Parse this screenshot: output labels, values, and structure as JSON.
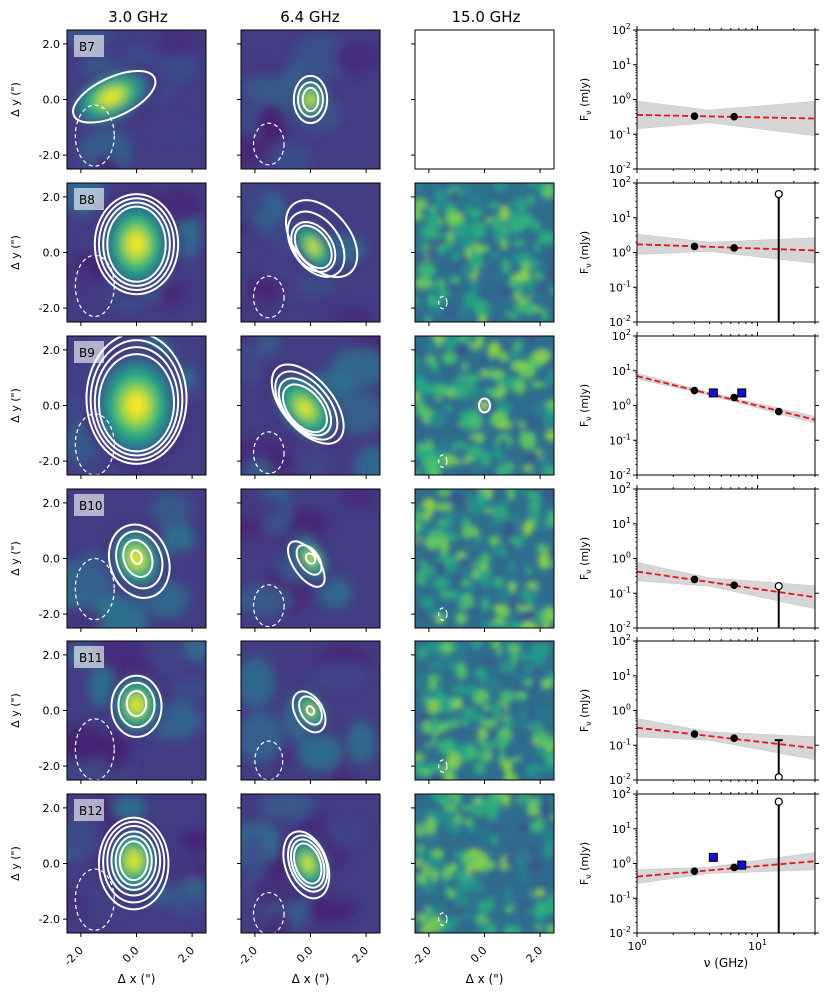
{
  "chart_data": {
    "type": "image-grid-with-sed-scatter",
    "column_titles": [
      "3.0 GHz",
      "6.4 GHz",
      "15.0 GHz"
    ],
    "image_x_label": "Δ x (\")",
    "image_y_label": "Δ y (\")",
    "image_tick_labels": [
      "-2.0",
      "0.0",
      "2.0"
    ],
    "image_ticks": [
      -2.0,
      0.0,
      2.0
    ],
    "image_range": [
      -2.5,
      2.5
    ],
    "sed_x_label": "ν (GHz)",
    "sed_y_label": "F_ν (mJy)",
    "sed_xlim": [
      1,
      30
    ],
    "sed_ylim": [
      0.01,
      100
    ],
    "sed_x_tick_labels": [
      "10^0",
      "10^1"
    ],
    "sed_y_tick_labels": [
      "10^-2",
      "10^-1",
      "10^0",
      "10^1",
      "10^2"
    ],
    "rows": [
      {
        "label": "B7",
        "panels": [
          {
            "freq_ghz": 3.0,
            "source": {
              "x": -0.9,
              "y": 0.1,
              "sx": 0.8,
              "sy": 0.45,
              "angle": 25,
              "peak": 0.95
            },
            "contours": [
              {
                "x": -0.8,
                "y": 0.1,
                "rx": 1.6,
                "ry": 0.7,
                "angle": 25,
                "style": "solid"
              }
            ],
            "beam": {
              "x": -1.5,
              "y": -1.3,
              "rx": 0.7,
              "ry": 1.1
            }
          },
          {
            "freq_ghz": 6.4,
            "source": {
              "x": 0.0,
              "y": 0.0,
              "sx": 0.3,
              "sy": 0.4,
              "angle": 0,
              "peak": 0.9
            },
            "contours": [
              {
                "x": 0.0,
                "y": 0.0,
                "rx": 0.28,
                "ry": 0.42,
                "style": "solid"
              },
              {
                "x": 0.0,
                "y": 0.0,
                "rx": 0.45,
                "ry": 0.62,
                "style": "solid"
              },
              {
                "x": 0.0,
                "y": 0.0,
                "rx": 0.6,
                "ry": 0.85,
                "style": "solid"
              }
            ],
            "beam": {
              "x": -1.5,
              "y": -1.6,
              "rx": 0.55,
              "ry": 0.75
            }
          },
          {
            "freq_ghz": 15.0,
            "empty": true
          }
        ],
        "sed": {
          "points": [
            {
              "nu": 3.0,
              "flux": 0.33
            },
            {
              "nu": 6.4,
              "flux": 0.32
            }
          ],
          "fit": {
            "y_at_1": 0.36,
            "slope": -0.07
          },
          "band_width": 0.3
        }
      },
      {
        "label": "B8",
        "panels": [
          {
            "freq_ghz": 3.0,
            "source": {
              "x": 0.0,
              "y": 0.3,
              "sx": 0.65,
              "sy": 0.85,
              "angle": 0,
              "peak": 0.95
            },
            "contours": [
              {
                "x": 0.0,
                "y": 0.3,
                "rx": 1.05,
                "ry": 1.35,
                "style": "solid"
              },
              {
                "x": 0.0,
                "y": 0.3,
                "rx": 1.2,
                "ry": 1.5,
                "style": "solid"
              },
              {
                "x": 0.0,
                "y": 0.3,
                "rx": 1.35,
                "ry": 1.65,
                "style": "solid"
              },
              {
                "x": 0.0,
                "y": 0.3,
                "rx": 1.5,
                "ry": 1.8,
                "style": "solid"
              }
            ],
            "beam": {
              "x": -1.5,
              "y": -1.2,
              "rx": 0.7,
              "ry": 1.1
            }
          },
          {
            "freq_ghz": 6.4,
            "source": {
              "x": 0.1,
              "y": 0.2,
              "sx": 0.3,
              "sy": 0.55,
              "angle": 35,
              "peak": 0.9
            },
            "contours": [
              {
                "x": 0.1,
                "y": 0.2,
                "rx": 0.55,
                "ry": 0.85,
                "angle": 35,
                "style": "solid"
              },
              {
                "x": 0.1,
                "y": 0.2,
                "rx": 0.68,
                "ry": 0.98,
                "angle": 35,
                "style": "solid"
              },
              {
                "x": 0.2,
                "y": 0.3,
                "rx": 0.85,
                "ry": 1.3,
                "angle": 35,
                "style": "solid"
              },
              {
                "x": 0.4,
                "y": 0.5,
                "rx": 1.0,
                "ry": 1.6,
                "angle": 40,
                "style": "solid"
              }
            ],
            "beam": {
              "x": -1.5,
              "y": -1.6,
              "rx": 0.55,
              "ry": 0.75
            }
          },
          {
            "freq_ghz": 15.0,
            "noise": true,
            "beam": {
              "x": -1.5,
              "y": -1.8,
              "rx": 0.15,
              "ry": 0.22
            }
          }
        ],
        "sed": {
          "points": [
            {
              "nu": 3.0,
              "flux": 1.5
            },
            {
              "nu": 6.4,
              "flux": 1.35
            },
            {
              "nu": 15.0,
              "flux": 48,
              "upper_limit": true
            }
          ],
          "fit": {
            "y_at_1": 1.72,
            "slope": -0.12
          },
          "band_width": 0.22
        }
      },
      {
        "label": "B9",
        "panels": [
          {
            "freq_ghz": 3.0,
            "source": {
              "x": 0.0,
              "y": 0.0,
              "sx": 0.8,
              "sy": 1.0,
              "angle": 0,
              "peak": 0.95
            },
            "contours": [
              {
                "x": 0.0,
                "y": 0.1,
                "rx": 1.35,
                "ry": 1.75,
                "style": "solid"
              },
              {
                "x": 0.0,
                "y": 0.15,
                "rx": 1.5,
                "ry": 1.95,
                "style": "solid"
              },
              {
                "x": 0.0,
                "y": 0.2,
                "rx": 1.65,
                "ry": 2.15,
                "style": "solid"
              },
              {
                "x": 0.0,
                "y": 0.25,
                "rx": 1.8,
                "ry": 2.35,
                "style": "solid"
              }
            ],
            "beam": {
              "x": -1.5,
              "y": -1.4,
              "rx": 0.7,
              "ry": 1.1
            }
          },
          {
            "freq_ghz": 6.4,
            "source": {
              "x": -0.2,
              "y": -0.1,
              "sx": 0.45,
              "sy": 0.75,
              "angle": 40,
              "peak": 0.9
            },
            "contours": [
              {
                "x": -0.2,
                "y": -0.1,
                "rx": 0.6,
                "ry": 1.0,
                "angle": 40,
                "style": "solid"
              },
              {
                "x": -0.2,
                "y": -0.05,
                "rx": 0.7,
                "ry": 1.2,
                "angle": 40,
                "style": "solid"
              },
              {
                "x": -0.15,
                "y": 0.0,
                "rx": 0.8,
                "ry": 1.45,
                "angle": 40,
                "style": "solid"
              },
              {
                "x": -0.1,
                "y": 0.05,
                "rx": 0.9,
                "ry": 1.7,
                "angle": 40,
                "style": "solid"
              }
            ],
            "beam": {
              "x": -1.5,
              "y": -1.7,
              "rx": 0.55,
              "ry": 0.75
            }
          },
          {
            "freq_ghz": 15.0,
            "noise": true,
            "source": {
              "x": 0.0,
              "y": 0.0,
              "sx": 0.12,
              "sy": 0.15,
              "angle": 0,
              "peak": 1.0
            },
            "contours": [
              {
                "x": 0.0,
                "y": 0.0,
                "rx": 0.2,
                "ry": 0.25,
                "style": "solid"
              }
            ],
            "beam": {
              "x": -1.5,
              "y": -2.0,
              "rx": 0.15,
              "ry": 0.22
            }
          }
        ],
        "sed": {
          "points": [
            {
              "nu": 3.0,
              "flux": 2.7
            },
            {
              "nu": 6.4,
              "flux": 1.7
            },
            {
              "nu": 15.0,
              "flux": 0.67
            }
          ],
          "extra_points": [
            {
              "nu": 4.3,
              "flux": 2.3
            },
            {
              "nu": 7.4,
              "flux": 2.3
            }
          ],
          "fit": {
            "y_at_1": 7.0,
            "slope": -0.85
          },
          "band_width": 0.06
        }
      },
      {
        "label": "B10",
        "panels": [
          {
            "freq_ghz": 3.0,
            "source": {
              "x": 0.0,
              "y": 0.0,
              "sx": 0.45,
              "sy": 0.6,
              "angle": 20,
              "peak": 0.95
            },
            "contours": [
              {
                "x": 0.0,
                "y": 0.05,
                "rx": 0.18,
                "ry": 0.25,
                "angle": 20,
                "style": "solid"
              },
              {
                "x": 0.05,
                "y": 0.0,
                "rx": 0.5,
                "ry": 0.68,
                "angle": 20,
                "style": "solid"
              },
              {
                "x": 0.1,
                "y": -0.05,
                "rx": 0.8,
                "ry": 1.05,
                "angle": 20,
                "style": "solid"
              },
              {
                "x": 0.1,
                "y": -0.1,
                "rx": 1.05,
                "ry": 1.35,
                "angle": 20,
                "style": "solid"
              }
            ],
            "beam": {
              "x": -1.5,
              "y": -1.1,
              "rx": 0.7,
              "ry": 1.1
            }
          },
          {
            "freq_ghz": 6.4,
            "source": {
              "x": 0.0,
              "y": 0.0,
              "sx": 0.25,
              "sy": 0.45,
              "angle": 35,
              "peak": 0.9
            },
            "contours": [
              {
                "x": 0.0,
                "y": 0.0,
                "rx": 0.15,
                "ry": 0.2,
                "angle": 35,
                "style": "solid"
              },
              {
                "x": -0.05,
                "y": -0.05,
                "rx": 0.35,
                "ry": 0.6,
                "angle": 35,
                "style": "solid"
              },
              {
                "x": -0.15,
                "y": -0.2,
                "rx": 0.45,
                "ry": 0.95,
                "angle": 35,
                "style": "solid"
              }
            ],
            "beam": {
              "x": -1.5,
              "y": -1.7,
              "rx": 0.55,
              "ry": 0.75
            }
          },
          {
            "freq_ghz": 15.0,
            "noise": true,
            "beam": {
              "x": -1.5,
              "y": -2.0,
              "rx": 0.15,
              "ry": 0.22
            }
          }
        ],
        "sed": {
          "points": [
            {
              "nu": 3.0,
              "flux": 0.25
            },
            {
              "nu": 6.4,
              "flux": 0.17
            },
            {
              "nu": 15.0,
              "flux": 0.16,
              "upper_limit": true
            }
          ],
          "fit": {
            "y_at_1": 0.42,
            "slope": -0.5
          },
          "band_width": 0.2
        }
      },
      {
        "label": "B11",
        "panels": [
          {
            "freq_ghz": 3.0,
            "source": {
              "x": 0.0,
              "y": 0.2,
              "sx": 0.45,
              "sy": 0.55,
              "angle": 0,
              "peak": 0.95
            },
            "contours": [
              {
                "x": 0.0,
                "y": 0.25,
                "rx": 0.35,
                "ry": 0.45,
                "style": "solid"
              },
              {
                "x": 0.0,
                "y": 0.2,
                "rx": 0.65,
                "ry": 0.8,
                "style": "solid"
              },
              {
                "x": 0.0,
                "y": 0.15,
                "rx": 0.9,
                "ry": 1.1,
                "style": "solid"
              }
            ],
            "beam": {
              "x": -1.5,
              "y": -1.4,
              "rx": 0.7,
              "ry": 1.1
            }
          },
          {
            "freq_ghz": 6.4,
            "source": {
              "x": 0.0,
              "y": 0.0,
              "sx": 0.25,
              "sy": 0.4,
              "angle": 30,
              "peak": 0.85
            },
            "contours": [
              {
                "x": 0.0,
                "y": 0.0,
                "rx": 0.12,
                "ry": 0.16,
                "angle": 30,
                "style": "solid"
              },
              {
                "x": 0.0,
                "y": 0.0,
                "rx": 0.35,
                "ry": 0.55,
                "angle": 30,
                "style": "solid"
              },
              {
                "x": -0.05,
                "y": -0.05,
                "rx": 0.5,
                "ry": 0.8,
                "angle": 30,
                "style": "solid"
              }
            ],
            "beam": {
              "x": -1.5,
              "y": -1.8,
              "rx": 0.5,
              "ry": 0.7
            }
          },
          {
            "freq_ghz": 15.0,
            "noise": true,
            "beam": {
              "x": -1.5,
              "y": -2.0,
              "rx": 0.15,
              "ry": 0.22
            }
          }
        ],
        "sed": {
          "points": [
            {
              "nu": 3.0,
              "flux": 0.21
            },
            {
              "nu": 6.4,
              "flux": 0.16
            },
            {
              "nu": 15.0,
              "flux": 0.012,
              "upper_limit": true,
              "limit_top": 0.14
            }
          ],
          "fit": {
            "y_at_1": 0.32,
            "slope": -0.4
          },
          "band_width": 0.2
        }
      },
      {
        "label": "B12",
        "panels": [
          {
            "freq_ghz": 3.0,
            "source": {
              "x": -0.1,
              "y": 0.1,
              "sx": 0.45,
              "sy": 0.6,
              "angle": 0,
              "peak": 0.95
            },
            "contours": [
              {
                "x": -0.1,
                "y": 0.1,
                "rx": 0.5,
                "ry": 0.7,
                "style": "solid"
              },
              {
                "x": -0.1,
                "y": 0.1,
                "rx": 0.65,
                "ry": 0.88,
                "style": "solid"
              },
              {
                "x": -0.1,
                "y": 0.1,
                "rx": 0.8,
                "ry": 1.05,
                "style": "solid"
              },
              {
                "x": -0.1,
                "y": 0.1,
                "rx": 0.95,
                "ry": 1.25,
                "style": "solid"
              },
              {
                "x": -0.1,
                "y": 0.05,
                "rx": 1.1,
                "ry": 1.45,
                "style": "solid"
              },
              {
                "x": -0.1,
                "y": 0.0,
                "rx": 1.25,
                "ry": 1.65,
                "style": "solid"
              }
            ],
            "beam": {
              "x": -1.5,
              "y": -1.3,
              "rx": 0.7,
              "ry": 1.1
            }
          },
          {
            "freq_ghz": 6.4,
            "source": {
              "x": -0.1,
              "y": 0.0,
              "sx": 0.35,
              "sy": 0.55,
              "angle": 20,
              "peak": 0.9
            },
            "contours": [
              {
                "x": -0.1,
                "y": 0.0,
                "rx": 0.45,
                "ry": 0.75,
                "angle": 20,
                "style": "solid"
              },
              {
                "x": -0.1,
                "y": 0.0,
                "rx": 0.55,
                "ry": 0.9,
                "angle": 20,
                "style": "solid"
              },
              {
                "x": -0.1,
                "y": 0.0,
                "rx": 0.65,
                "ry": 1.05,
                "angle": 20,
                "style": "solid"
              },
              {
                "x": -0.15,
                "y": -0.05,
                "rx": 0.75,
                "ry": 1.25,
                "angle": 20,
                "style": "solid"
              }
            ],
            "beam": {
              "x": -1.5,
              "y": -1.8,
              "rx": 0.55,
              "ry": 0.75
            }
          },
          {
            "freq_ghz": 15.0,
            "noise": true,
            "beam": {
              "x": -1.5,
              "y": -2.0,
              "rx": 0.15,
              "ry": 0.22
            }
          }
        ],
        "sed": {
          "points": [
            {
              "nu": 3.0,
              "flux": 0.6
            },
            {
              "nu": 6.4,
              "flux": 0.77
            },
            {
              "nu": 15.0,
              "flux": 60,
              "upper_limit": true
            }
          ],
          "extra_points": [
            {
              "nu": 4.3,
              "flux": 1.5
            },
            {
              "nu": 7.4,
              "flux": 0.9
            }
          ],
          "fit": {
            "y_at_1": 0.42,
            "slope": 0.3
          },
          "band_width": 0.15
        }
      }
    ]
  }
}
